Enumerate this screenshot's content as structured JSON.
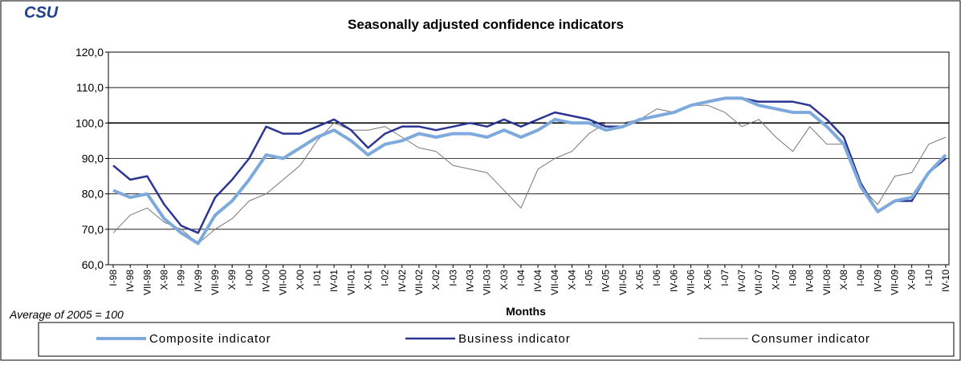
{
  "logo": "CSU",
  "chart_data": {
    "type": "line",
    "title": "Seasonally adjusted confidence indicators",
    "x_label": "Months",
    "annotation": "Average of 2005 = 100",
    "categories": [
      "I-98",
      "IV-98",
      "VII-98",
      "X-98",
      "I-99",
      "IV-99",
      "VII-99",
      "X-99",
      "I-00",
      "IV-00",
      "VII-00",
      "X-00",
      "I-01",
      "IV-01",
      "VII-01",
      "X-01",
      "I-02",
      "IV-02",
      "VII-02",
      "X-02",
      "I-03",
      "IV-03",
      "VII-03",
      "X-03",
      "I-04",
      "IV-04",
      "VII-04",
      "X-04",
      "I-05",
      "IV-05",
      "VII-05",
      "X-05",
      "I-06",
      "IV-06",
      "VII-06",
      "X-06",
      "I-07",
      "IV-07",
      "VII-07",
      "X-07",
      "I-08",
      "IV-08",
      "VII-08",
      "X-08",
      "I-09",
      "IV-09",
      "VII-09",
      "X-09",
      "I-10",
      "IV-10"
    ],
    "series": [
      {
        "name": "Composite indicator",
        "color": "#7ea9dc",
        "width": 4,
        "values": [
          81,
          79,
          80,
          73,
          69,
          66,
          74,
          78,
          84,
          91,
          90,
          93,
          96,
          98,
          95,
          91,
          94,
          95,
          97,
          96,
          97,
          97,
          96,
          98,
          96,
          98,
          101,
          100,
          100,
          98,
          99,
          101,
          102,
          103,
          105,
          106,
          107,
          107,
          105,
          104,
          103,
          103,
          99,
          94,
          82,
          75,
          78,
          79,
          86,
          91
        ]
      },
      {
        "name": "Business indicator",
        "color": "#2b3592",
        "width": 2.5,
        "values": [
          88,
          84,
          85,
          77,
          71,
          69,
          79,
          84,
          90,
          99,
          97,
          97,
          99,
          101,
          98,
          93,
          97,
          99,
          99,
          98,
          99,
          100,
          99,
          101,
          99,
          101,
          103,
          102,
          101,
          99,
          99,
          101,
          102,
          103,
          105,
          106,
          107,
          107,
          106,
          106,
          106,
          105,
          101,
          96,
          83,
          75,
          78,
          78,
          86,
          90
        ]
      },
      {
        "name": "Consumer indicator",
        "color": "#777777",
        "width": 1,
        "values": [
          69,
          74,
          76,
          72,
          70,
          66,
          70,
          73,
          78,
          80,
          84,
          88,
          95,
          100,
          98,
          98,
          99,
          96,
          93,
          92,
          88,
          87,
          86,
          81,
          76,
          87,
          90,
          92,
          97,
          100,
          100,
          101,
          104,
          103,
          105,
          105,
          103,
          99,
          101,
          96,
          92,
          99,
          94,
          94,
          82,
          77,
          85,
          86,
          94,
          96
        ]
      }
    ],
    "ylim": [
      60,
      120
    ],
    "yticks": [
      {
        "value": 60,
        "label": "60,0"
      },
      {
        "value": 70,
        "label": "70,0"
      },
      {
        "value": 80,
        "label": "80,0"
      },
      {
        "value": 90,
        "label": "90,0"
      },
      {
        "value": 100,
        "label": "100,0"
      },
      {
        "value": 110,
        "label": "110,0"
      },
      {
        "value": 120,
        "label": "120,0"
      }
    ],
    "grid": true
  }
}
